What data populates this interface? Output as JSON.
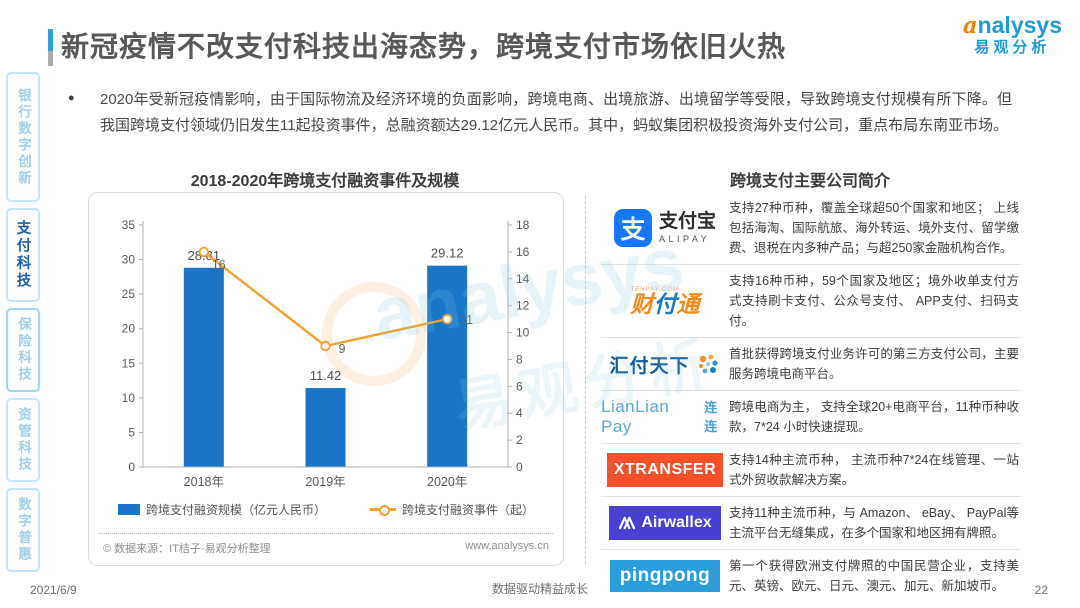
{
  "header": {
    "title": "新冠疫情不改支付科技出海态势，跨境支付市场依旧火热"
  },
  "brand": {
    "name_en_first": "a",
    "name_en_rest": "nalysys",
    "name_cn": "易观分析"
  },
  "sidebar": {
    "items": [
      {
        "label": "银行数字创新",
        "active": false
      },
      {
        "label": "支付科技",
        "active": true
      },
      {
        "label": "保险科技",
        "active": false
      },
      {
        "label": "资管科技",
        "active": false
      },
      {
        "label": "数字普惠",
        "active": false
      }
    ]
  },
  "bullet": {
    "marker": "●",
    "text": "2020年受新冠疫情影响，由于国际物流及经济环境的负面影响，跨境电商、出境旅游、出境留学等受限，导致跨境支付规模有所下降。但我国跨境支付领域仍旧发生11起投资事件，总融资额达29.12亿元人民币。其中，蚂蚁集团积极投资海外支付公司，重点布局东南亚市场。"
  },
  "chart": {
    "title": "2018-2020年跨境支付融资事件及规模",
    "source": "© 数据来源：IT桔子·易观分析整理",
    "website": "www.analysys.cn"
  },
  "chart_data": {
    "type": "bar",
    "title": "2018-2020年跨境支付融资事件及规模",
    "categories": [
      "2018年",
      "2019年",
      "2020年"
    ],
    "series": [
      {
        "name": "跨境支付融资规模（亿元人民币）",
        "type": "bar",
        "axis": "left",
        "values": [
          28.81,
          11.42,
          29.12
        ],
        "color": "#1a75c9"
      },
      {
        "name": "跨境支付融资事件（起）",
        "type": "line",
        "axis": "right",
        "values": [
          16,
          9,
          11
        ],
        "color": "#f0a32c"
      }
    ],
    "left_axis": {
      "min": 0,
      "max": 35,
      "ticks": [
        0,
        5,
        10,
        15,
        20,
        25,
        30,
        35
      ]
    },
    "right_axis": {
      "min": 0,
      "max": 18,
      "ticks": [
        0,
        2,
        4,
        6,
        8,
        10,
        12,
        14,
        16,
        18
      ]
    },
    "grid": false,
    "legend_position": "bottom"
  },
  "companies": {
    "title": "跨境支付主要公司简介",
    "rows": [
      {
        "name": "支付宝 ALIPAY",
        "logo_glyph": "支",
        "logo_cn": "支付宝",
        "logo_en": "ALIPAY",
        "desc": "支持27种币种，覆盖全球超50个国家和地区； 上线包括海淘、国际航旅、海外转运、境外支付、留学缴费、退税在内多种产品；与超250家金融机构合作。"
      },
      {
        "name": "财付通",
        "logo_t1": "财",
        "logo_t2": "付",
        "logo_t3": "通",
        "logo_sub": "TENPAY.COM",
        "desc": "支持16种币种，59个国家及地区；境外收单支付方式支持刷卡支付、公众号支付、 APP支付、扫码支付。"
      },
      {
        "name": "汇付天下",
        "logo_text": "汇付天下",
        "desc": "首批获得跨境支付业务许可的第三方支付公司，主要服务跨境电商平台。"
      },
      {
        "name": "LianLian Pay 连连",
        "logo_text": "LianLian Pay",
        "logo_badge": "连连",
        "desc": "跨境电商为主， 支持全球20+电商平台，11种币种收款，7*24 小时快速提现。"
      },
      {
        "name": "XTRANSFER",
        "logo_text": "XTRANSFER",
        "desc": "支持14种主流币种， 主流币种7*24在线管理、一站式外贸收款解决方案。"
      },
      {
        "name": "Airwallex",
        "logo_text": "Airwallex",
        "desc": "支持11种主流币种，与 Amazon、 eBay、 PayPal等主流平台无缝集成，在多个国家和地区拥有牌照。"
      },
      {
        "name": "pingpong",
        "logo_text": "pingpong",
        "desc": "第一个获得欧洲支付牌照的中国民营企业，支持美元、英镑、欧元、日元、澳元、加元、新加坡币。"
      }
    ]
  },
  "watermark": {
    "line1": "analysys",
    "line2": "易观分析"
  },
  "footer": {
    "date": "2021/6/9",
    "center": "数据驱动精益成长",
    "page_number": "22"
  }
}
